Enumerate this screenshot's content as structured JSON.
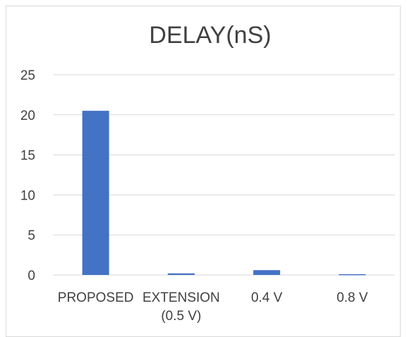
{
  "chart_data": {
    "type": "bar",
    "title": "DELAY(nS)",
    "xlabel": "",
    "ylabel": "",
    "categories": [
      [
        "PROPOSED"
      ],
      [
        "EXTENSION",
        "(0.5 V)"
      ],
      [
        "0.4 V"
      ],
      [
        "0.8 V"
      ]
    ],
    "values": [
      20.5,
      0.2,
      0.6,
      0.1
    ],
    "ylim": [
      0,
      25
    ],
    "yticks": [
      0,
      5,
      10,
      15,
      20,
      25
    ],
    "grid": true,
    "legend": "none",
    "bar_color": "#4472C4"
  }
}
